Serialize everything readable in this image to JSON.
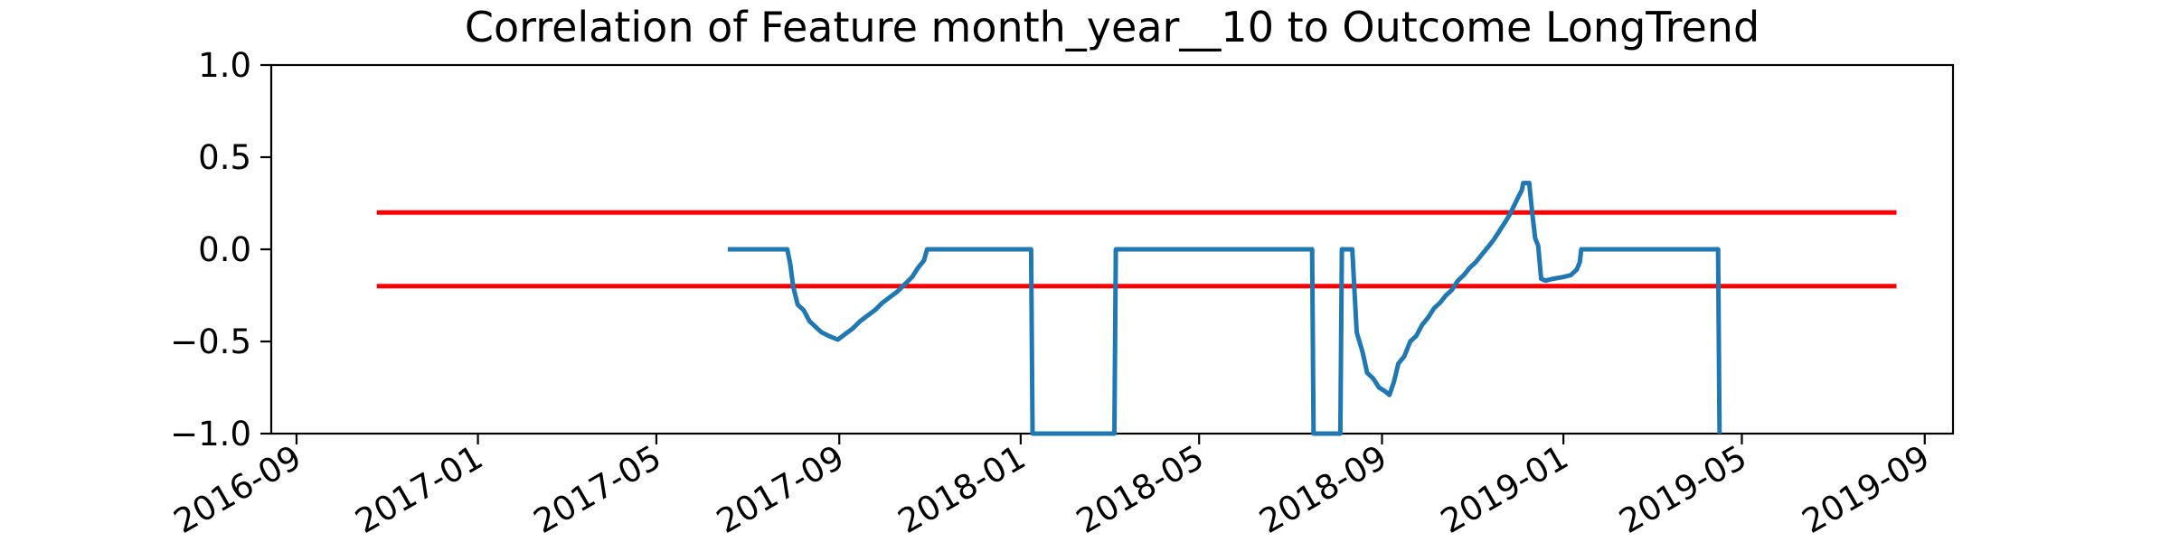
{
  "chart_data": {
    "type": "line",
    "title": "Correlation of Feature month_year__10 to Outcome LongTrend",
    "xlabel": "",
    "ylabel": "",
    "x_range": [
      "2016-08-15",
      "2019-09-20"
    ],
    "ylim": [
      -1.0,
      1.0
    ],
    "grid": false,
    "x_ticks": [
      "2016-09",
      "2017-01",
      "2017-05",
      "2017-09",
      "2018-01",
      "2018-05",
      "2018-09",
      "2019-01",
      "2019-05",
      "2019-09"
    ],
    "y_ticks": [
      "1.0",
      "0.5",
      "0.0",
      "−0.5",
      "−1.0"
    ],
    "y_tick_values": [
      1.0,
      0.5,
      0.0,
      -0.5,
      -1.0
    ],
    "thresholds": [
      {
        "y": 0.2,
        "x_start": "2016-10-25",
        "x_end": "2019-08-13",
        "color": "#ff0000"
      },
      {
        "y": -0.2,
        "x_start": "2016-10-25",
        "x_end": "2019-08-13",
        "color": "#ff0000"
      }
    ],
    "series": [
      {
        "color": "#1f77b4",
        "points": [
          [
            "2017-06-18",
            0.0
          ],
          [
            "2017-07-28",
            0.0
          ],
          [
            "2017-07-30",
            -0.08
          ],
          [
            "2017-08-01",
            -0.2
          ],
          [
            "2017-08-04",
            -0.3
          ],
          [
            "2017-08-08",
            -0.33
          ],
          [
            "2017-08-12",
            -0.39
          ],
          [
            "2017-08-16",
            -0.42
          ],
          [
            "2017-08-20",
            -0.45
          ],
          [
            "2017-08-25",
            -0.47
          ],
          [
            "2017-08-31",
            -0.49
          ],
          [
            "2017-09-05",
            -0.46
          ],
          [
            "2017-09-10",
            -0.43
          ],
          [
            "2017-09-15",
            -0.39
          ],
          [
            "2017-09-20",
            -0.36
          ],
          [
            "2017-09-25",
            -0.33
          ],
          [
            "2017-09-30",
            -0.29
          ],
          [
            "2017-10-05",
            -0.26
          ],
          [
            "2017-10-10",
            -0.23
          ],
          [
            "2017-10-15",
            -0.19
          ],
          [
            "2017-10-20",
            -0.15
          ],
          [
            "2017-10-24",
            -0.1
          ],
          [
            "2017-10-28",
            -0.06
          ],
          [
            "2017-10-30",
            0.0
          ],
          [
            "2018-01-08",
            0.0
          ],
          [
            "2018-01-09",
            -1.0
          ],
          [
            "2018-03-05",
            -1.0
          ],
          [
            "2018-03-06",
            0.0
          ],
          [
            "2018-07-16",
            0.0
          ],
          [
            "2018-07-17",
            -1.0
          ],
          [
            "2018-08-04",
            -1.0
          ],
          [
            "2018-08-05",
            0.0
          ],
          [
            "2018-08-12",
            0.0
          ],
          [
            "2018-08-15",
            -0.45
          ],
          [
            "2018-08-19",
            -0.56
          ],
          [
            "2018-08-22",
            -0.67
          ],
          [
            "2018-08-26",
            -0.7
          ],
          [
            "2018-08-30",
            -0.75
          ],
          [
            "2018-09-03",
            -0.77
          ],
          [
            "2018-09-06",
            -0.79
          ],
          [
            "2018-09-09",
            -0.72
          ],
          [
            "2018-09-12",
            -0.62
          ],
          [
            "2018-09-16",
            -0.58
          ],
          [
            "2018-09-20",
            -0.5
          ],
          [
            "2018-09-24",
            -0.47
          ],
          [
            "2018-09-28",
            -0.41
          ],
          [
            "2018-10-02",
            -0.37
          ],
          [
            "2018-10-06",
            -0.32
          ],
          [
            "2018-10-10",
            -0.29
          ],
          [
            "2018-10-14",
            -0.25
          ],
          [
            "2018-10-18",
            -0.22
          ],
          [
            "2018-10-22",
            -0.17
          ],
          [
            "2018-10-26",
            -0.14
          ],
          [
            "2018-10-30",
            -0.1
          ],
          [
            "2018-11-03",
            -0.07
          ],
          [
            "2018-11-07",
            -0.03
          ],
          [
            "2018-11-11",
            0.01
          ],
          [
            "2018-11-15",
            0.05
          ],
          [
            "2018-11-19",
            0.1
          ],
          [
            "2018-11-23",
            0.15
          ],
          [
            "2018-11-26",
            0.19
          ],
          [
            "2018-11-29",
            0.24
          ],
          [
            "2018-12-02",
            0.29
          ],
          [
            "2018-12-04",
            0.32
          ],
          [
            "2018-12-05",
            0.36
          ],
          [
            "2018-12-09",
            0.36
          ],
          [
            "2018-12-11",
            0.2
          ],
          [
            "2018-12-13",
            0.06
          ],
          [
            "2018-12-15",
            0.02
          ],
          [
            "2018-12-17",
            -0.16
          ],
          [
            "2018-12-20",
            -0.17
          ],
          [
            "2018-12-25",
            -0.16
          ],
          [
            "2019-01-01",
            -0.15
          ],
          [
            "2019-01-06",
            -0.14
          ],
          [
            "2019-01-10",
            -0.11
          ],
          [
            "2019-01-12",
            -0.07
          ],
          [
            "2019-01-13",
            0.0
          ],
          [
            "2019-04-15",
            0.0
          ],
          [
            "2019-04-16",
            -1.0
          ]
        ]
      }
    ]
  }
}
